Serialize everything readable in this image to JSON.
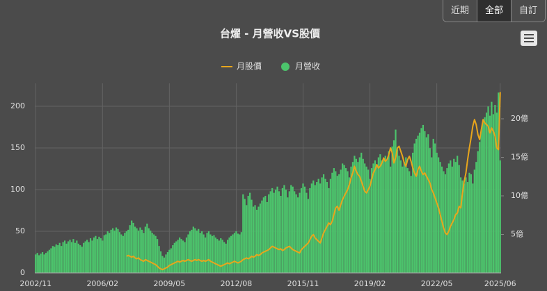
{
  "range_buttons": [
    "近期",
    "全部",
    "自訂"
  ],
  "selected_button": 1,
  "chart_data": {
    "type": "combo",
    "title": "台燿 - 月營收VS股價",
    "categories": [
      "2002/11",
      null,
      null,
      null,
      null,
      null,
      null,
      null,
      null,
      null,
      null,
      null,
      null,
      null,
      null,
      null,
      null,
      null,
      null,
      null,
      null,
      null,
      null,
      null,
      null,
      null,
      null,
      null,
      null,
      null,
      null,
      null,
      null,
      null,
      null,
      null,
      null,
      null,
      null,
      "2006/02",
      null,
      null,
      null,
      null,
      null,
      null,
      null,
      null,
      null,
      null,
      null,
      null,
      null,
      null,
      null,
      null,
      null,
      null,
      null,
      null,
      null,
      null,
      null,
      null,
      null,
      null,
      null,
      null,
      null,
      null,
      null,
      null,
      null,
      null,
      null,
      null,
      null,
      null,
      "2009/05",
      null,
      null,
      null,
      null,
      null,
      null,
      null,
      null,
      null,
      null,
      null,
      null,
      null,
      null,
      null,
      null,
      null,
      null,
      null,
      null,
      null,
      null,
      null,
      null,
      null,
      null,
      null,
      null,
      null,
      null,
      null,
      null,
      null,
      null,
      null,
      null,
      null,
      null,
      "2012/08",
      null,
      null,
      null,
      null,
      null,
      null,
      null,
      null,
      null,
      null,
      null,
      null,
      null,
      null,
      null,
      null,
      null,
      null,
      null,
      null,
      null,
      null,
      null,
      null,
      null,
      null,
      null,
      null,
      null,
      null,
      null,
      null,
      null,
      null,
      null,
      null,
      null,
      null,
      "2015/11",
      null,
      null,
      null,
      null,
      null,
      null,
      null,
      null,
      null,
      null,
      null,
      null,
      null,
      null,
      null,
      null,
      null,
      null,
      null,
      null,
      null,
      null,
      null,
      null,
      null,
      null,
      null,
      null,
      null,
      null,
      null,
      null,
      null,
      null,
      null,
      null,
      null,
      null,
      "2019/02",
      null,
      null,
      null,
      null,
      null,
      null,
      null,
      null,
      null,
      null,
      null,
      null,
      null,
      null,
      null,
      null,
      null,
      null,
      null,
      null,
      null,
      null,
      null,
      null,
      null,
      null,
      null,
      null,
      null,
      null,
      null,
      null,
      null,
      null,
      null,
      null,
      null,
      null,
      "2022/05",
      null,
      null,
      null,
      null,
      null,
      null,
      null,
      null,
      null,
      null,
      null,
      null,
      null,
      null,
      null,
      null,
      null,
      null,
      null,
      null,
      null,
      null,
      null,
      null,
      null,
      null,
      null,
      null,
      null,
      null,
      null,
      null,
      null,
      null,
      null,
      null,
      "2025/06"
    ],
    "series": [
      {
        "name": "月股價",
        "type": "line",
        "color": "#e8a61c",
        "axis": "y",
        "values": [
          null,
          null,
          null,
          null,
          null,
          null,
          null,
          null,
          null,
          null,
          null,
          null,
          null,
          null,
          null,
          null,
          null,
          null,
          null,
          null,
          null,
          null,
          null,
          null,
          null,
          null,
          null,
          null,
          null,
          null,
          null,
          null,
          null,
          null,
          null,
          null,
          null,
          null,
          null,
          null,
          null,
          null,
          null,
          null,
          null,
          null,
          null,
          null,
          null,
          null,
          null,
          null,
          null,
          20,
          21,
          20,
          19,
          20,
          18,
          17,
          18,
          16,
          15,
          14,
          16,
          15,
          14,
          13,
          12,
          11,
          10,
          8,
          6,
          5,
          4,
          5,
          6,
          7,
          9,
          10,
          11,
          12,
          13,
          14,
          13,
          14,
          15,
          14,
          15,
          16,
          15,
          14,
          15,
          16,
          15,
          16,
          15,
          14,
          15,
          14,
          15,
          16,
          14,
          13,
          12,
          11,
          10,
          9,
          8,
          9,
          10,
          11,
          12,
          11,
          12,
          13,
          14,
          13,
          12,
          13,
          14,
          16,
          17,
          18,
          17,
          18,
          20,
          19,
          20,
          22,
          21,
          22,
          24,
          25,
          26,
          27,
          28,
          30,
          32,
          31,
          30,
          29,
          28,
          29,
          27,
          28,
          30,
          31,
          32,
          30,
          28,
          27,
          26,
          25,
          24,
          28,
          30,
          32,
          34,
          36,
          40,
          44,
          46,
          42,
          40,
          38,
          36,
          42,
          48,
          52,
          56,
          60,
          58,
          62,
          70,
          78,
          80,
          75,
          82,
          88,
          92,
          96,
          100,
          106,
          114,
          120,
          128,
          122,
          118,
          116,
          110,
          104,
          98,
          96,
          100,
          104,
          112,
          120,
          124,
          130,
          126,
          128,
          132,
          138,
          134,
          136,
          142,
          150,
          144,
          132,
          138,
          150,
          152,
          146,
          140,
          132,
          128,
          136,
          140,
          134,
          126,
          120,
          116,
          124,
          128,
          122,
          118,
          120,
          116,
          112,
          108,
          100,
          96,
          90,
          84,
          78,
          70,
          62,
          54,
          48,
          46,
          50,
          56,
          60,
          64,
          70,
          72,
          80,
          78,
          96,
          110,
          120,
          136,
          150,
          162,
          176,
          184,
          178,
          166,
          160,
          172,
          184,
          180,
          178,
          176,
          168,
          174,
          170,
          164,
          150,
          148,
          217
        ]
      },
      {
        "name": "月營收",
        "type": "bar",
        "color": "#4cc46c",
        "axis": "y2",
        "values": [
          2.4,
          2.6,
          2.3,
          2.5,
          2.7,
          2.4,
          2.6,
          2.8,
          3.0,
          3.2,
          3.5,
          3.4,
          3.7,
          3.6,
          3.9,
          3.5,
          4.0,
          4.2,
          3.8,
          4.1,
          4.3,
          4.0,
          4.4,
          3.9,
          4.2,
          3.8,
          3.6,
          3.4,
          3.9,
          4.1,
          4.3,
          4.0,
          4.5,
          4.2,
          4.6,
          4.8,
          4.4,
          4.7,
          4.5,
          4.2,
          4.9,
          5.0,
          5.4,
          5.2,
          5.6,
          5.8,
          5.5,
          5.9,
          5.7,
          5.3,
          5.0,
          4.8,
          5.2,
          5.4,
          5.6,
          6.2,
          6.8,
          6.5,
          6.0,
          5.8,
          5.5,
          5.9,
          5.6,
          5.2,
          6.0,
          6.4,
          5.8,
          5.5,
          5.2,
          5.0,
          4.8,
          4.4,
          3.5,
          2.8,
          2.2,
          2.0,
          2.4,
          2.7,
          3.0,
          3.2,
          3.6,
          3.9,
          4.1,
          4.3,
          4.6,
          4.4,
          4.2,
          4.0,
          4.6,
          5.0,
          5.4,
          5.6,
          6.0,
          5.8,
          5.5,
          5.7,
          5.2,
          5.4,
          5.0,
          4.6,
          5.2,
          5.4,
          5.0,
          4.8,
          4.9,
          4.6,
          4.4,
          4.2,
          4.5,
          4.3,
          4.0,
          3.8,
          4.3,
          4.6,
          4.8,
          5.0,
          5.2,
          5.4,
          5.1,
          5.0,
          5.3,
          10.2,
          9.6,
          8.8,
          10.0,
          10.4,
          9.5,
          8.6,
          8.8,
          8.2,
          8.6,
          9.0,
          9.4,
          9.8,
          10.0,
          9.2,
          10.2,
          10.6,
          11.0,
          10.4,
          10.8,
          11.2,
          10.6,
          10.0,
          11.0,
          11.4,
          10.8,
          9.8,
          10.6,
          11.4,
          11.2,
          10.6,
          10.2,
          9.8,
          10.4,
          11.0,
          11.6,
          11.2,
          10.4,
          9.6,
          11.0,
          11.6,
          12.0,
          11.4,
          11.8,
          12.2,
          11.6,
          12.4,
          12.8,
          12.2,
          11.8,
          11.0,
          12.2,
          13.0,
          13.6,
          13.2,
          12.6,
          12.8,
          13.4,
          14.2,
          14.0,
          13.6,
          13.2,
          12.4,
          13.8,
          14.4,
          15.2,
          14.8,
          14.4,
          15.0,
          15.6,
          14.8,
          14.2,
          13.8,
          13.4,
          12.2,
          13.6,
          14.2,
          14.6,
          14.0,
          15.0,
          15.4,
          14.6,
          14.8,
          15.2,
          14.6,
          15.8,
          13.8,
          16.4,
          17.2,
          18.6,
          16.0,
          15.2,
          14.6,
          13.8,
          14.4,
          15.0,
          13.6,
          13.2,
          12.6,
          15.6,
          16.8,
          17.4,
          17.8,
          18.2,
          18.8,
          19.2,
          18.4,
          17.6,
          18.0,
          16.2,
          15.0,
          17.4,
          16.8,
          15.6,
          15.0,
          14.4,
          13.8,
          13.2,
          12.8,
          13.6,
          14.2,
          14.6,
          13.8,
          14.8,
          14.4,
          15.2,
          14.0,
          12.4,
          12.0,
          11.6,
          12.4,
          11.8,
          13.0,
          12.8,
          11.6,
          13.4,
          14.4,
          15.8,
          17.0,
          18.6,
          19.6,
          20.2,
          20.8,
          21.6,
          20.4,
          22.2,
          20.6,
          21.8,
          20.8,
          23.4,
          14.6
        ]
      }
    ],
    "ylim": [
      0,
      227.5
    ],
    "yticks": [
      0,
      50,
      100,
      150,
      200
    ],
    "y2lim": [
      0,
      24.6
    ],
    "y2ticks": [
      {
        "value": 5,
        "label": "5億"
      },
      {
        "value": 10,
        "label": "10億"
      },
      {
        "value": 15,
        "label": "15億"
      },
      {
        "value": 20,
        "label": "20億"
      }
    ],
    "grid": true
  }
}
